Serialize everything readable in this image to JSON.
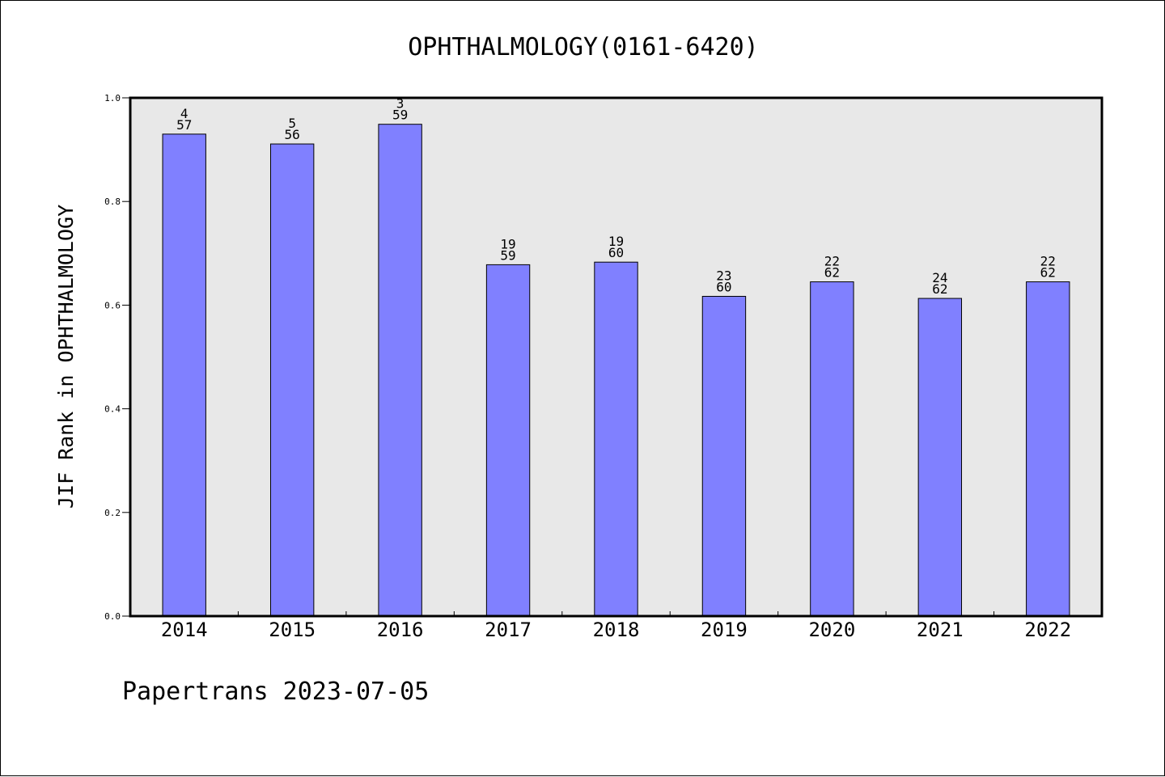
{
  "chart_data": {
    "type": "bar",
    "title": "OPHTHALMOLOGY(0161-6420)",
    "xlabel": "",
    "ylabel": "JIF Rank in OPHTHALMOLOGY",
    "ylim": [
      0,
      1.0
    ],
    "yticks": [
      "0.0",
      "0.2",
      "0.4",
      "0.6",
      "0.8",
      "1.0"
    ],
    "categories": [
      "2014",
      "2015",
      "2016",
      "2017",
      "2018",
      "2019",
      "2020",
      "2021",
      "2022"
    ],
    "values": [
      0.93,
      0.911,
      0.949,
      0.678,
      0.683,
      0.617,
      0.645,
      0.613,
      0.645
    ],
    "bar_labels": [
      [
        "4",
        "57"
      ],
      [
        "5",
        "56"
      ],
      [
        "3",
        "59"
      ],
      [
        "19",
        "59"
      ],
      [
        "19",
        "60"
      ],
      [
        "23",
        "60"
      ],
      [
        "22",
        "62"
      ],
      [
        "24",
        "62"
      ],
      [
        "22",
        "62"
      ]
    ],
    "grid": false,
    "legend": "none",
    "bar_color": "#8080ff",
    "plot_background": "#e8e8e8"
  },
  "footer": {
    "text": "Papertrans 2023-07-05"
  }
}
